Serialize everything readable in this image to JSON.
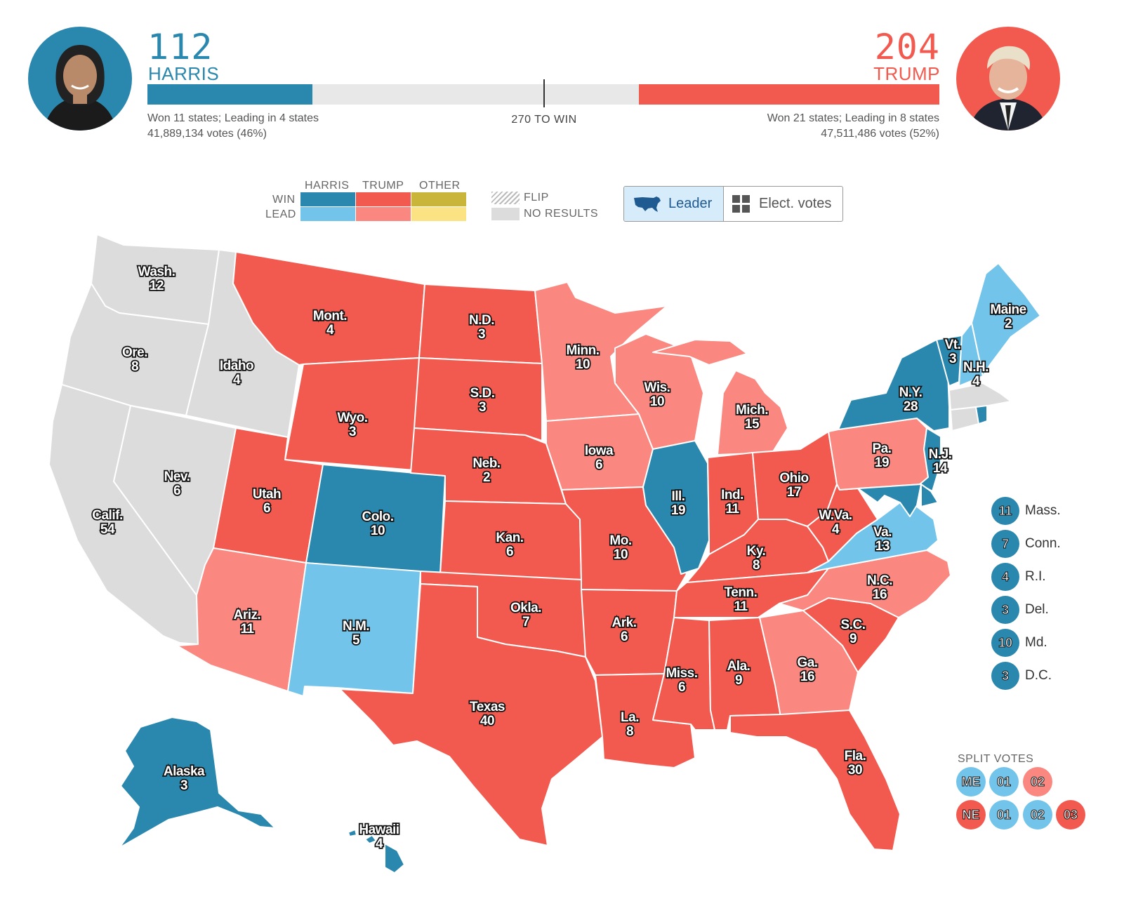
{
  "colors": {
    "harris_win": "#2a87ad",
    "harris_lead": "#72c4ea",
    "trump_win": "#f35a4f",
    "trump_lead": "#fa8880",
    "other_win": "#c9b53a",
    "other_lead": "#fbe383",
    "no_results": "#dcdcdc"
  },
  "header": {
    "harris": {
      "count": "112",
      "name": "HARRIS",
      "summary_line1": "Won 11 states; Leading in 4 states",
      "summary_line2": "41,889,134 votes (46%)",
      "ev": 112
    },
    "trump": {
      "count": "204",
      "name": "TRUMP",
      "summary_line1": "Won 21 states; Leading in 8 states",
      "summary_line2": "47,511,486 votes (52%)",
      "ev": 204
    },
    "total_ev": 538,
    "win_label": "270 TO WIN"
  },
  "legend": {
    "col_harris": "HARRIS",
    "col_trump": "TRUMP",
    "col_other": "OTHER",
    "row_win": "WIN",
    "row_lead": "LEAD",
    "flip": "FLIP",
    "no_results": "NO RESULTS"
  },
  "toggle": {
    "leader_label": "Leader",
    "ev_label": "Elect. votes",
    "leader_icon": "us-map-icon",
    "ev_icon": "grid-icon"
  },
  "states": [
    {
      "name": "Washington",
      "label": "Wash.",
      "ev": "12",
      "status": "no_results"
    },
    {
      "name": "Oregon",
      "label": "Ore.",
      "ev": "8",
      "status": "no_results"
    },
    {
      "name": "California",
      "label": "Calif.",
      "ev": "54",
      "status": "no_results"
    },
    {
      "name": "Idaho",
      "label": "Idaho",
      "ev": "4",
      "status": "no_results"
    },
    {
      "name": "Nevada",
      "label": "Nev.",
      "ev": "6",
      "status": "no_results"
    },
    {
      "name": "Montana",
      "label": "Mont.",
      "ev": "4",
      "status": "trump_win"
    },
    {
      "name": "Wyoming",
      "label": "Wyo.",
      "ev": "3",
      "status": "trump_win"
    },
    {
      "name": "Utah",
      "label": "Utah",
      "ev": "6",
      "status": "trump_win"
    },
    {
      "name": "Colorado",
      "label": "Colo.",
      "ev": "10",
      "status": "harris_win"
    },
    {
      "name": "Arizona",
      "label": "Ariz.",
      "ev": "11",
      "status": "trump_lead"
    },
    {
      "name": "New Mexico",
      "label": "N.M.",
      "ev": "5",
      "status": "harris_lead"
    },
    {
      "name": "North Dakota",
      "label": "N.D.",
      "ev": "3",
      "status": "trump_win"
    },
    {
      "name": "South Dakota",
      "label": "S.D.",
      "ev": "3",
      "status": "trump_win"
    },
    {
      "name": "Nebraska",
      "label": "Neb.",
      "ev": "2",
      "status": "trump_win"
    },
    {
      "name": "Kansas",
      "label": "Kan.",
      "ev": "6",
      "status": "trump_win"
    },
    {
      "name": "Oklahoma",
      "label": "Okla.",
      "ev": "7",
      "status": "trump_win"
    },
    {
      "name": "Texas",
      "label": "Texas",
      "ev": "40",
      "status": "trump_win"
    },
    {
      "name": "Minnesota",
      "label": "Minn.",
      "ev": "10",
      "status": "trump_lead"
    },
    {
      "name": "Iowa",
      "label": "Iowa",
      "ev": "6",
      "status": "trump_lead"
    },
    {
      "name": "Missouri",
      "label": "Mo.",
      "ev": "10",
      "status": "trump_win"
    },
    {
      "name": "Arkansas",
      "label": "Ark.",
      "ev": "6",
      "status": "trump_win"
    },
    {
      "name": "Louisiana",
      "label": "La.",
      "ev": "8",
      "status": "trump_win"
    },
    {
      "name": "Wisconsin",
      "label": "Wis.",
      "ev": "10",
      "status": "trump_lead"
    },
    {
      "name": "Illinois",
      "label": "Ill.",
      "ev": "19",
      "status": "harris_win"
    },
    {
      "name": "Michigan",
      "label": "Mich.",
      "ev": "15",
      "status": "trump_lead"
    },
    {
      "name": "Indiana",
      "label": "Ind.",
      "ev": "11",
      "status": "trump_win"
    },
    {
      "name": "Ohio",
      "label": "Ohio",
      "ev": "17",
      "status": "trump_win"
    },
    {
      "name": "Kentucky",
      "label": "Ky.",
      "ev": "8",
      "status": "trump_win"
    },
    {
      "name": "Tennessee",
      "label": "Tenn.",
      "ev": "11",
      "status": "trump_win"
    },
    {
      "name": "Mississippi",
      "label": "Miss.",
      "ev": "6",
      "status": "trump_win"
    },
    {
      "name": "Alabama",
      "label": "Ala.",
      "ev": "9",
      "status": "trump_win"
    },
    {
      "name": "Georgia",
      "label": "Ga.",
      "ev": "16",
      "status": "trump_lead"
    },
    {
      "name": "Florida",
      "label": "Fla.",
      "ev": "30",
      "status": "trump_win"
    },
    {
      "name": "South Carolina",
      "label": "S.C.",
      "ev": "9",
      "status": "trump_win"
    },
    {
      "name": "North Carolina",
      "label": "N.C.",
      "ev": "16",
      "status": "trump_lead"
    },
    {
      "name": "Virginia",
      "label": "Va.",
      "ev": "13",
      "status": "harris_lead"
    },
    {
      "name": "West Virginia",
      "label": "W.Va.",
      "ev": "4",
      "status": "trump_win"
    },
    {
      "name": "Pennsylvania",
      "label": "Pa.",
      "ev": "19",
      "status": "trump_lead"
    },
    {
      "name": "New York",
      "label": "N.Y.",
      "ev": "28",
      "status": "harris_win"
    },
    {
      "name": "New Jersey",
      "label": "N.J.",
      "ev": "14",
      "status": "harris_win"
    },
    {
      "name": "Vermont",
      "label": "Vt.",
      "ev": "3",
      "status": "harris_win"
    },
    {
      "name": "New Hampshire",
      "label": "N.H.",
      "ev": "4",
      "status": "harris_lead"
    },
    {
      "name": "Maine",
      "label": "Maine",
      "ev": "2",
      "status": "harris_lead"
    },
    {
      "name": "Alaska",
      "label": "Alaska",
      "ev": "3",
      "status": "no_results"
    },
    {
      "name": "Hawaii",
      "label": "Hawaii",
      "ev": "4",
      "status": "no_results"
    }
  ],
  "small_states": [
    {
      "ev": "11",
      "name": "Mass.",
      "status": "harris_win"
    },
    {
      "ev": "7",
      "name": "Conn.",
      "status": "harris_win"
    },
    {
      "ev": "4",
      "name": "R.I.",
      "status": "harris_win"
    },
    {
      "ev": "3",
      "name": "Del.",
      "status": "harris_win"
    },
    {
      "ev": "10",
      "name": "Md.",
      "status": "harris_win"
    },
    {
      "ev": "3",
      "name": "D.C.",
      "status": "harris_win"
    }
  ],
  "split_votes": {
    "label": "SPLIT VOTES",
    "maine": [
      {
        "text": "ME",
        "status": "harris_lead"
      },
      {
        "text": "01",
        "status": "harris_lead"
      },
      {
        "text": "02",
        "status": "trump_lead"
      }
    ],
    "nebraska": [
      {
        "text": "NE",
        "status": "trump_win"
      },
      {
        "text": "01",
        "status": "harris_lead"
      },
      {
        "text": "02",
        "status": "harris_lead"
      },
      {
        "text": "03",
        "status": "trump_win"
      }
    ]
  }
}
